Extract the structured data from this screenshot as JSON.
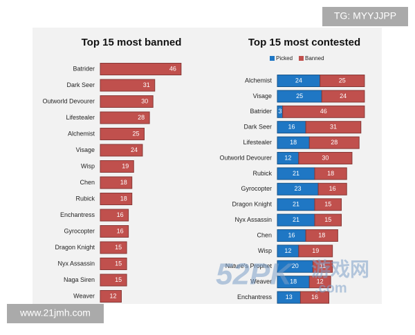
{
  "chart_data": [
    {
      "type": "barh",
      "title": "Top 15 most banned",
      "color": "#c0504d",
      "categories": [
        "Batrider",
        "Dark Seer",
        "Outworld Devourer",
        "Lifestealer",
        "Alchemist",
        "Visage",
        "Wisp",
        "Chen",
        "Rubick",
        "Enchantress",
        "Gyrocopter",
        "Dragon Knight",
        "Nyx Assassin",
        "Naga Siren",
        "Weaver"
      ],
      "values": [
        46,
        31,
        30,
        28,
        25,
        24,
        19,
        18,
        18,
        16,
        16,
        15,
        15,
        15,
        12
      ]
    },
    {
      "type": "stacked_barh",
      "title": "Top 15 most contested",
      "categories": [
        "Alchemist",
        "Visage",
        "Batrider",
        "Dark Seer",
        "Lifestealer",
        "Outworld Devourer",
        "Rubick",
        "Gyrocopter",
        "Dragon Knight",
        "Nyx Assassin",
        "Chen",
        "Wisp",
        "Nature's Prophet",
        "Weaver",
        "Enchantress"
      ],
      "series": [
        {
          "name": "Picked",
          "color": "#1f77c4",
          "values": [
            24,
            25,
            3,
            16,
            18,
            12,
            21,
            23,
            21,
            21,
            16,
            12,
            20,
            18,
            13
          ]
        },
        {
          "name": "Banned",
          "color": "#c0504d",
          "values": [
            25,
            24,
            46,
            31,
            28,
            30,
            18,
            16,
            15,
            15,
            18,
            19,
            11,
            12,
            16
          ]
        }
      ]
    }
  ],
  "watermarks": {
    "top_right": "TG: MYYJJPP",
    "bottom_left": "www.21jmh.com",
    "logo": "52PK",
    "logo_cn": "游戏网",
    "logo_suffix": ".com"
  }
}
